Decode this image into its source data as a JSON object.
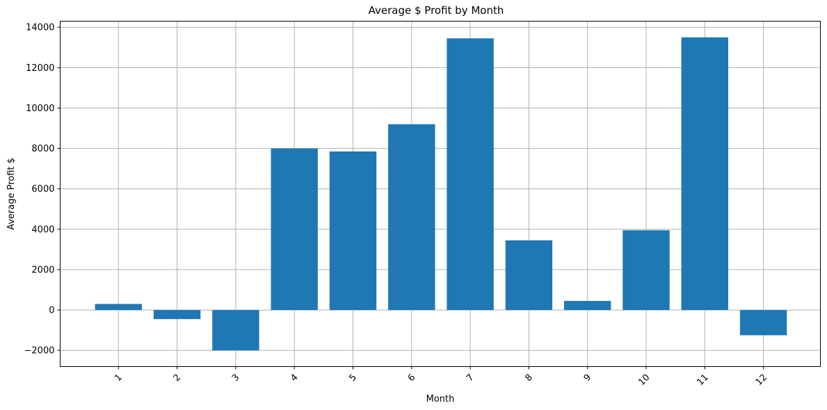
{
  "chart_data": {
    "type": "bar",
    "title": "Average $ Profit by Month",
    "xlabel": "Month",
    "ylabel": "Average Profit $",
    "categories": [
      "1",
      "2",
      "3",
      "4",
      "5",
      "6",
      "7",
      "8",
      "9",
      "10",
      "11",
      "12"
    ],
    "values": [
      300,
      -450,
      -2000,
      8000,
      7850,
      9200,
      13450,
      3450,
      450,
      3950,
      13500,
      -1250
    ],
    "ylim": [
      -2800,
      14300
    ],
    "yticks": [
      -2000,
      0,
      2000,
      4000,
      6000,
      8000,
      10000,
      12000,
      14000
    ],
    "ytick_labels": [
      "−2000",
      "0",
      "2000",
      "4000",
      "6000",
      "8000",
      "10000",
      "12000",
      "14000"
    ],
    "grid": true,
    "xtick_rotation": 45,
    "bar_color": "#1f77b4"
  }
}
